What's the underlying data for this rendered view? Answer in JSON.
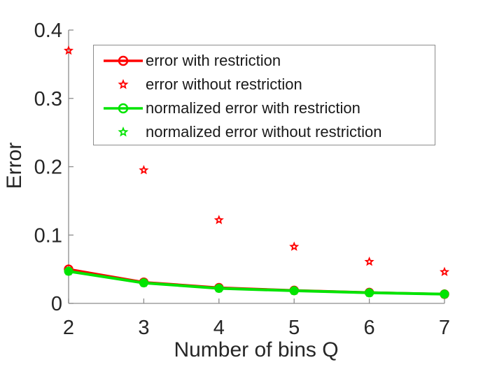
{
  "chart_data": {
    "type": "line",
    "title": "",
    "xlabel": "Number of bins Q",
    "ylabel": "Error",
    "x": [
      2,
      3,
      4,
      5,
      6,
      7
    ],
    "xlim": [
      2,
      7
    ],
    "ylim": [
      0,
      0.4
    ],
    "x_tick_labels": [
      "2",
      "3",
      "4",
      "5",
      "6",
      "7"
    ],
    "x_tick_values": [
      2,
      3,
      4,
      5,
      6,
      7
    ],
    "y_tick_labels": [
      "0",
      "0.1",
      "0.2",
      "0.3",
      "0.4"
    ],
    "y_tick_values": [
      0,
      0.1,
      0.2,
      0.3,
      0.4
    ],
    "grid": false,
    "legend_position": "inside-top-left",
    "series": [
      {
        "name": "error with restriction",
        "color": "#ff0000",
        "marker": "circle-open",
        "line": true,
        "values": [
          0.05,
          0.031,
          0.023,
          0.019,
          0.016,
          0.0135
        ]
      },
      {
        "name": "error without restriction",
        "color": "#ff0000",
        "marker": "pentagram",
        "line": false,
        "values": [
          0.37,
          0.195,
          0.122,
          0.083,
          0.061,
          0.046
        ]
      },
      {
        "name": "normalized error with restriction",
        "color": "#00e400",
        "marker": "circle-filled",
        "line": true,
        "values": [
          0.047,
          0.03,
          0.022,
          0.0185,
          0.0155,
          0.0135
        ]
      },
      {
        "name": "normalized error without restriction",
        "color": "#00e400",
        "marker": "pentagram",
        "line": false,
        "values": [
          0.047,
          0.03,
          0.022,
          0.0185,
          0.0155,
          0.0135
        ]
      }
    ]
  },
  "axis": {
    "line_color": "#8c8c8c",
    "tick_label_color": "#262626",
    "label_color": "#262626"
  },
  "legend": {
    "border_color": "#8c8c8c",
    "background": "#ffffff"
  }
}
